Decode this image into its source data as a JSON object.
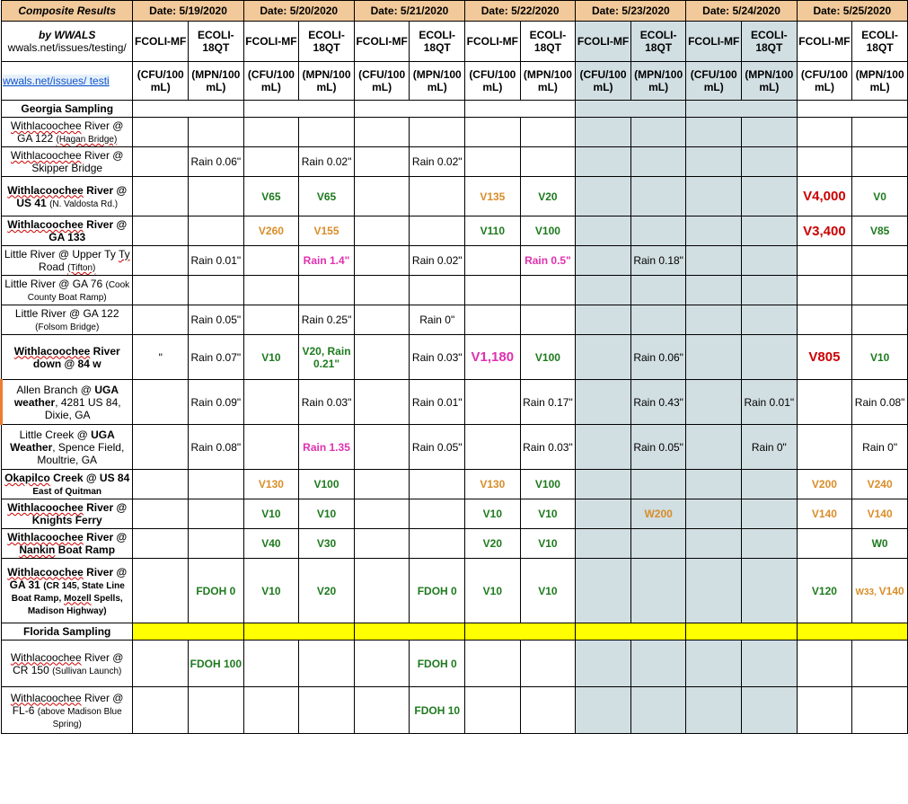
{
  "header": {
    "corner_title": "Composite Results",
    "by_line": "by WWALS",
    "site_line": "wwals.net/issues/testing/",
    "link_text": "wwals.net/issues/ testi",
    "dates": [
      "Date: 5/19/2020",
      "Date: 5/20/2020",
      "Date: 5/21/2020",
      "Date: 5/22/2020",
      "Date: 5/23/2020",
      "Date: 5/24/2020",
      "Date: 5/25/2020"
    ],
    "sub_a": "FCOLI-MF",
    "sub_b": "ECOLI-18QT",
    "unit_a": "(CFU/100 mL)",
    "unit_b": "(MPN/100 mL)"
  },
  "sections": {
    "georgia": "Georgia Sampling",
    "florida": "Florida Sampling"
  },
  "rows": {
    "r1": {
      "label": "<span class='squig'>Withlacoochee</span> River @ GA 122  <span class='small squig'>(Hagan Bridge)</span>"
    },
    "r2": {
      "label": "<span class='squig'>Withlacoochee</span> River @ Skipper Bridge",
      "c": {
        "b19": "Rain 0.06\"",
        "b20": "Rain 0.02\"",
        "b21": "Rain 0.02\""
      }
    },
    "r3": {
      "label": "<b><span class='squig'>Withlacoochee</span> River @ US 41</b> <span class='small'>(N. Valdosta Rd.)</span>",
      "c": {
        "a20": {
          "t": "V65",
          "cls": "green"
        },
        "b20": {
          "t": "V65",
          "cls": "green"
        },
        "a22": {
          "t": "V135",
          "cls": "orange"
        },
        "b22": {
          "t": "V20",
          "cls": "green"
        },
        "a25": {
          "t": "V4,000",
          "cls": "red big"
        },
        "b25": {
          "t": "V0",
          "cls": "green"
        }
      }
    },
    "r4": {
      "label": "<b><span class='squig'>Withlacoochee</span> River @ GA 133</b>",
      "c": {
        "a20": {
          "t": "V260",
          "cls": "orange"
        },
        "b20": {
          "t": "V155",
          "cls": "orange"
        },
        "a22": {
          "t": "V110",
          "cls": "green"
        },
        "b22": {
          "t": "V100",
          "cls": "green"
        },
        "a25": {
          "t": "V3,400",
          "cls": "red big"
        },
        "b25": {
          "t": "V85",
          "cls": "green"
        }
      }
    },
    "r5": {
      "label": "Little River @ Upper Ty <span class='squig'>Ty</span> Road <span class='small squig'>(Tifton)</span>",
      "c": {
        "b19": "Rain 0.01\"",
        "b20": {
          "t": "Rain 1.4\"",
          "cls": "magenta bold"
        },
        "b21": "Rain 0.02\"",
        "b22": {
          "t": "Rain 0.5\"",
          "cls": "magenta bold"
        },
        "b23": "Rain 0.18\""
      }
    },
    "r6": {
      "label": "Little River @ GA 76 <span class='small'>(Cook County Boat Ramp)</span>"
    },
    "r7": {
      "label": "Little River @ GA 122 <span class='small'>(Folsom Bridge)</span>",
      "c": {
        "b19": "Rain 0.05\"",
        "b20": "Rain 0.25\"",
        "b21": "Rain 0\""
      }
    },
    "r8": {
      "label": "<b><span class='squig'>Withlacoochee</span> River down @ 84 w</b>",
      "c": {
        "a19": "\"",
        "b19": "Rain 0.07\"",
        "a20": {
          "t": "V10",
          "cls": "green"
        },
        "b20": {
          "t": "V20, Rain 0.21\"",
          "cls": "green"
        },
        "b21": "Rain 0.03\"",
        "a22": {
          "t": "V1,180",
          "cls": "magenta bold big"
        },
        "b22": {
          "t": "V100",
          "cls": "green"
        },
        "b23": "Rain 0.06\"",
        "a25": {
          "t": "V805",
          "cls": "red big"
        },
        "b25": {
          "t": "V10",
          "cls": "green"
        }
      }
    },
    "r9": {
      "label": "Allen  Branch @ <b>UGA weather</b>, 4281 US 84, Dixie, GA",
      "c": {
        "b19": "Rain 0.09\"",
        "b20": "Rain 0.03\"",
        "b21": "Rain 0.01\"",
        "b22": "Rain 0.17\"",
        "b23": "Rain 0.43\"",
        "b24": "Rain 0.01\"",
        "b25": "Rain 0.08\""
      }
    },
    "r10": {
      "label": "Little Creek @ <b>UGA Weather</b>, Spence Field, Moultrie, GA",
      "c": {
        "b19": "Rain 0.08\"",
        "b20": {
          "t": "Rain 1.35",
          "cls": "magenta bold"
        },
        "b21": "Rain 0.05\"",
        "b22": "Rain 0.03\"",
        "b23": "Rain 0.05\"",
        "b24": "Rain 0\"",
        "b25": "Rain 0\""
      }
    },
    "r11": {
      "label": "<b><span class='squig'>Okapilco</span> Creek @ US 84</b> <b><span class='small'>East of Quitman</span></b>",
      "c": {
        "a20": {
          "t": "V130",
          "cls": "orange"
        },
        "b20": {
          "t": "V100",
          "cls": "green"
        },
        "a22": {
          "t": "V130",
          "cls": "orange"
        },
        "b22": {
          "t": "V100",
          "cls": "green"
        },
        "a25": {
          "t": "V200",
          "cls": "orange"
        },
        "b25": {
          "t": "V240",
          "cls": "orange"
        }
      }
    },
    "r12": {
      "label": "<b><span class='squig'>Withlacoochee</span> River @ Knights Ferry</b>",
      "c": {
        "a20": {
          "t": "V10",
          "cls": "green"
        },
        "b20": {
          "t": "V10",
          "cls": "green"
        },
        "a22": {
          "t": "V10",
          "cls": "green"
        },
        "b22": {
          "t": "V10",
          "cls": "green"
        },
        "b23": {
          "t": "W200",
          "cls": "orange"
        },
        "a25": {
          "t": "V140",
          "cls": "orange"
        },
        "b25": {
          "t": "V140",
          "cls": "orange"
        }
      }
    },
    "r13": {
      "label": "<b><span class='squig'>Withlacoochee</span> River @ <span class='squig'>Nankin</span> Boat Ramp</b>",
      "c": {
        "a20": {
          "t": "V40",
          "cls": "green"
        },
        "b20": {
          "t": "V30",
          "cls": "green"
        },
        "a22": {
          "t": "V20",
          "cls": "green"
        },
        "b22": {
          "t": "V10",
          "cls": "green"
        },
        "b25": {
          "t": "W0",
          "cls": "green"
        }
      }
    },
    "r14": {
      "label": "<b><span class='squig'>Withlacoochee</span> River @ GA 31</b> <span class='small'><b>(CR 145, State Line Boat Ramp, <span class='squig'>Mozell</span> Spells, Madison Highway)</b></span>",
      "c": {
        "b19": {
          "t": "FDOH 0",
          "cls": "green"
        },
        "a20": {
          "t": "V10",
          "cls": "green"
        },
        "b20": {
          "t": "V20",
          "cls": "green"
        },
        "b21": {
          "t": "FDOH 0",
          "cls": "green"
        },
        "a22": {
          "t": "V10",
          "cls": "green"
        },
        "b22": {
          "t": "V10",
          "cls": "green"
        },
        "a25": {
          "t": "V120",
          "cls": "green"
        },
        "b25": {
          "t": "<span class='small'>W33, </span>V140",
          "cls": "orange"
        }
      }
    },
    "r15": {
      "label": "<span class='squig'>Withlacoochee</span> River @ CR 150 <span class='small'>(Sullivan Launch)</span>",
      "c": {
        "b19": {
          "t": "FDOH 100",
          "cls": "green"
        },
        "b21": {
          "t": "FDOH 0",
          "cls": "green"
        }
      }
    },
    "r16": {
      "label": "<span class='squig'>Withlacoochee</span> River @ FL-6 <span class='small'>(above Madison Blue Spring)</span>",
      "c": {
        "b21": {
          "t": "FDOH 10",
          "cls": "green"
        }
      }
    }
  },
  "colors": {
    "date_bg": "#f1c99a",
    "shade_bg": "#d1dee2",
    "yellow": "#ffff00",
    "green": "#1e7a1e",
    "orange": "#d98d28",
    "red": "#cc0000",
    "magenta": "#e030b0"
  }
}
